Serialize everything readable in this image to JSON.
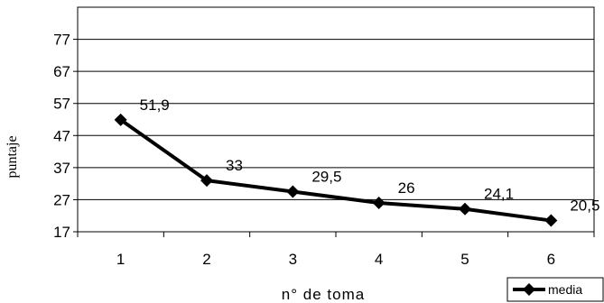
{
  "chart_data": {
    "type": "line",
    "title": "",
    "xlabel": "n° de toma",
    "ylabel": "puntaje",
    "categories": [
      "1",
      "2",
      "3",
      "4",
      "5",
      "6"
    ],
    "yticks": [
      "17",
      "27",
      "37",
      "47",
      "57",
      "67",
      "77"
    ],
    "ylim": [
      17,
      87
    ],
    "grid": true,
    "legend": "bottom-right",
    "series": [
      {
        "name": "media",
        "values": [
          51.9,
          33,
          29.5,
          26,
          24.1,
          20.5
        ],
        "labels": [
          "51,9",
          "33",
          "29,5",
          "26",
          "24,1",
          "20,5"
        ],
        "color": "#000000",
        "marker": "diamond"
      }
    ]
  }
}
